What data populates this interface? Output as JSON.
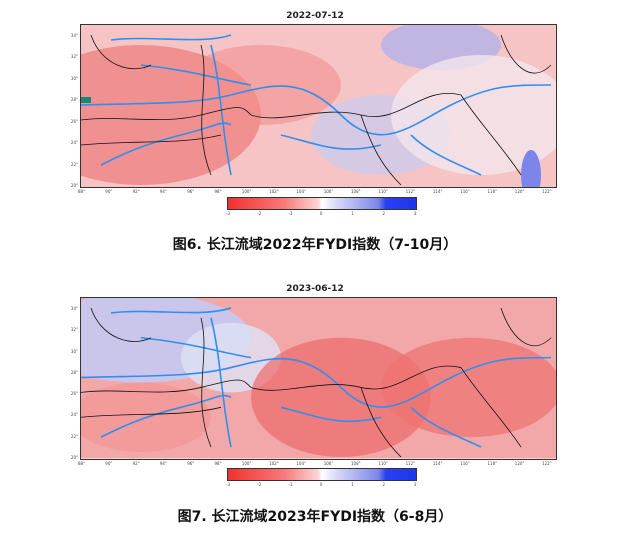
{
  "figures": [
    {
      "map_title": "2022-07-12",
      "caption": "图6. 长江流域2022年FYDI指数（7-10月）",
      "tone": "mostly-red"
    },
    {
      "map_title": "2023-06-12",
      "caption": "图7. 长江流域2023年FYDI指数（6-8月）",
      "tone": "red-east-blue-west"
    }
  ],
  "lat_ticks": [
    "34°",
    "32°",
    "30°",
    "28°",
    "26°",
    "24°",
    "22°",
    "20°"
  ],
  "lon_ticks": [
    "88°",
    "90°",
    "92°",
    "94°",
    "96°",
    "98°",
    "100°",
    "102°",
    "104°",
    "106°",
    "108°",
    "110°",
    "112°",
    "114°",
    "116°",
    "118°",
    "120°",
    "122°"
  ],
  "colorbar_ticks": [
    "-3",
    "-2",
    "-1",
    "0",
    "1",
    "2",
    "3"
  ],
  "colors": {
    "dry": "#f23030",
    "wet": "#1f36ee",
    "river": "#2f8fef",
    "boundary": "#111111"
  }
}
